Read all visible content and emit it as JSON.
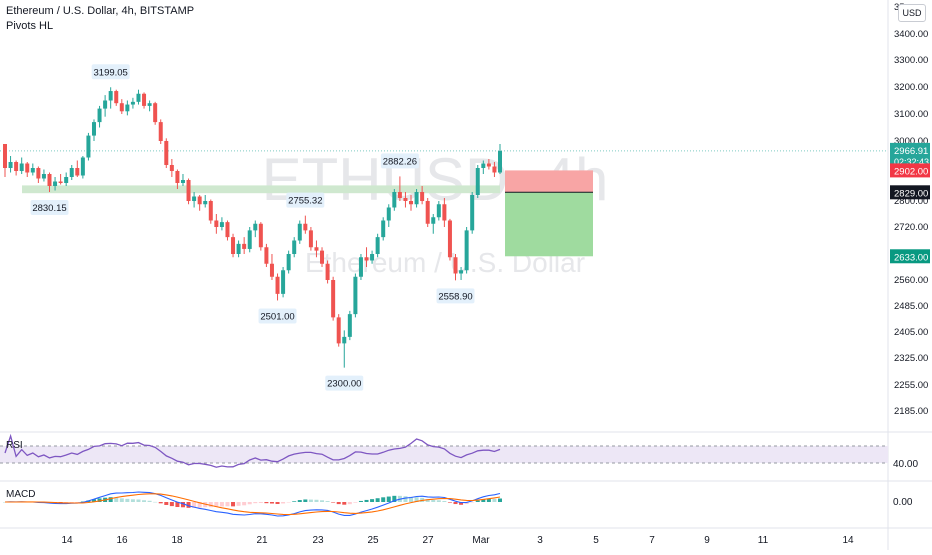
{
  "header": {
    "symbol_title": "Ethereum / U.S. Dollar, 4h, BITSTAMP",
    "indicator": "Pivots HL",
    "currency_button": "USD"
  },
  "watermark": {
    "symbol": "ETHUSD, 4h",
    "name": "Ethereum / U.S. Dollar"
  },
  "price_axis": {
    "ticks": [
      "3400.00",
      "3300.00",
      "3200.00",
      "3100.00",
      "3000.00",
      "2800.00",
      "2720.00",
      "2640.00",
      "2560.00",
      "2485.00",
      "2405.00",
      "2325.00",
      "2255.00",
      "2185.00"
    ],
    "top_partial": "35"
  },
  "time_axis": {
    "ticks": [
      "14",
      "16",
      "18",
      "21",
      "23",
      "25",
      "27",
      "Mar",
      "3",
      "5",
      "7",
      "9",
      "11",
      "14"
    ]
  },
  "price_labels": {
    "current": {
      "price": "2966.91",
      "countdown": "02:32:43"
    },
    "stop": "2902.00",
    "entry": "2829.00",
    "target": "2633.00"
  },
  "pivot_labels": [
    {
      "text": "3199.05"
    },
    {
      "text": "2830.15"
    },
    {
      "text": "2755.32"
    },
    {
      "text": "2882.26"
    },
    {
      "text": "2501.00"
    },
    {
      "text": "2300.00"
    },
    {
      "text": "2558.90"
    }
  ],
  "rsi": {
    "label": "RSI",
    "level": "40.00"
  },
  "macd": {
    "label": "MACD",
    "level": "0.00"
  },
  "colors": {
    "up": "#26a69a",
    "down": "#ef5350",
    "stop_zone": "#f8a5a5",
    "target_zone": "#9fdb9f",
    "support_zone": "#cfe8cf",
    "rsi_line": "#7e57c2",
    "macd_line": "#2962ff",
    "signal_line": "#ff6d00"
  },
  "chart_data": {
    "type": "candlestick",
    "candles": [
      [
        2990,
        2990,
        2880,
        2910
      ],
      [
        2910,
        2950,
        2895,
        2930
      ],
      [
        2930,
        2935,
        2885,
        2900
      ],
      [
        2900,
        2945,
        2890,
        2925
      ],
      [
        2925,
        2930,
        2880,
        2895
      ],
      [
        2895,
        2925,
        2885,
        2910
      ],
      [
        2910,
        2915,
        2860,
        2875
      ],
      [
        2875,
        2905,
        2865,
        2890
      ],
      [
        2890,
        2895,
        2830,
        2850
      ],
      [
        2850,
        2880,
        2835,
        2865
      ],
      [
        2865,
        2890,
        2855,
        2860
      ],
      [
        2860,
        2895,
        2850,
        2880
      ],
      [
        2880,
        2920,
        2870,
        2910
      ],
      [
        2910,
        2935,
        2880,
        2885
      ],
      [
        2885,
        2950,
        2875,
        2945
      ],
      [
        2945,
        3030,
        2935,
        3020
      ],
      [
        3020,
        3080,
        3000,
        3070
      ],
      [
        3070,
        3130,
        3050,
        3120
      ],
      [
        3120,
        3170,
        3090,
        3150
      ],
      [
        3150,
        3199,
        3120,
        3185
      ],
      [
        3185,
        3190,
        3130,
        3140
      ],
      [
        3140,
        3155,
        3100,
        3110
      ],
      [
        3110,
        3150,
        3095,
        3135
      ],
      [
        3135,
        3160,
        3120,
        3145
      ],
      [
        3145,
        3190,
        3135,
        3175
      ],
      [
        3175,
        3180,
        3120,
        3130
      ],
      [
        3130,
        3150,
        3110,
        3140
      ],
      [
        3140,
        3145,
        3060,
        3070
      ],
      [
        3070,
        3080,
        2990,
        3000
      ],
      [
        3000,
        3010,
        2910,
        2920
      ],
      [
        2920,
        2940,
        2880,
        2900
      ],
      [
        2900,
        2905,
        2840,
        2860
      ],
      [
        2860,
        2890,
        2850,
        2870
      ],
      [
        2870,
        2875,
        2790,
        2800
      ],
      [
        2800,
        2830,
        2780,
        2815
      ],
      [
        2815,
        2820,
        2770,
        2790
      ],
      [
        2790,
        2820,
        2780,
        2800
      ],
      [
        2800,
        2805,
        2730,
        2740
      ],
      [
        2740,
        2760,
        2700,
        2720
      ],
      [
        2720,
        2750,
        2710,
        2735
      ],
      [
        2735,
        2740,
        2680,
        2690
      ],
      [
        2690,
        2700,
        2630,
        2640
      ],
      [
        2640,
        2680,
        2630,
        2670
      ],
      [
        2670,
        2690,
        2640,
        2655
      ],
      [
        2655,
        2720,
        2645,
        2710
      ],
      [
        2710,
        2740,
        2690,
        2730
      ],
      [
        2730,
        2735,
        2650,
        2660
      ],
      [
        2660,
        2670,
        2600,
        2610
      ],
      [
        2610,
        2640,
        2560,
        2570
      ],
      [
        2570,
        2580,
        2501,
        2520
      ],
      [
        2520,
        2600,
        2510,
        2590
      ],
      [
        2590,
        2650,
        2580,
        2640
      ],
      [
        2640,
        2690,
        2630,
        2680
      ],
      [
        2680,
        2740,
        2670,
        2730
      ],
      [
        2730,
        2755,
        2700,
        2710
      ],
      [
        2710,
        2720,
        2650,
        2660
      ],
      [
        2660,
        2680,
        2630,
        2650
      ],
      [
        2650,
        2660,
        2600,
        2610
      ],
      [
        2610,
        2620,
        2550,
        2560
      ],
      [
        2560,
        2570,
        2440,
        2450
      ],
      [
        2450,
        2460,
        2360,
        2370
      ],
      [
        2370,
        2410,
        2300,
        2390
      ],
      [
        2390,
        2470,
        2380,
        2460
      ],
      [
        2460,
        2580,
        2450,
        2570
      ],
      [
        2570,
        2640,
        2560,
        2630
      ],
      [
        2630,
        2660,
        2600,
        2620
      ],
      [
        2620,
        2650,
        2610,
        2640
      ],
      [
        2640,
        2700,
        2630,
        2690
      ],
      [
        2690,
        2750,
        2680,
        2740
      ],
      [
        2740,
        2790,
        2720,
        2780
      ],
      [
        2780,
        2840,
        2770,
        2830
      ],
      [
        2830,
        2882,
        2800,
        2810
      ],
      [
        2810,
        2830,
        2780,
        2800
      ],
      [
        2800,
        2820,
        2770,
        2790
      ],
      [
        2790,
        2840,
        2780,
        2830
      ],
      [
        2830,
        2850,
        2790,
        2800
      ],
      [
        2800,
        2810,
        2720,
        2730
      ],
      [
        2730,
        2760,
        2700,
        2750
      ],
      [
        2750,
        2800,
        2740,
        2790
      ],
      [
        2790,
        2810,
        2720,
        2740
      ],
      [
        2740,
        2745,
        2620,
        2630
      ],
      [
        2630,
        2640,
        2559,
        2580
      ],
      [
        2580,
        2600,
        2560,
        2590
      ],
      [
        2590,
        2720,
        2580,
        2710
      ],
      [
        2710,
        2830,
        2700,
        2820
      ],
      [
        2820,
        2920,
        2810,
        2910
      ],
      [
        2910,
        2935,
        2890,
        2925
      ],
      [
        2925,
        2940,
        2905,
        2915
      ],
      [
        2915,
        2930,
        2880,
        2895
      ],
      [
        2895,
        2990,
        2890,
        2967
      ]
    ],
    "trade": {
      "stop": 2902,
      "entry": 2829,
      "target": 2633
    },
    "support_zone": [
      2826,
      2852
    ],
    "ylim": [
      2140,
      3500
    ]
  }
}
